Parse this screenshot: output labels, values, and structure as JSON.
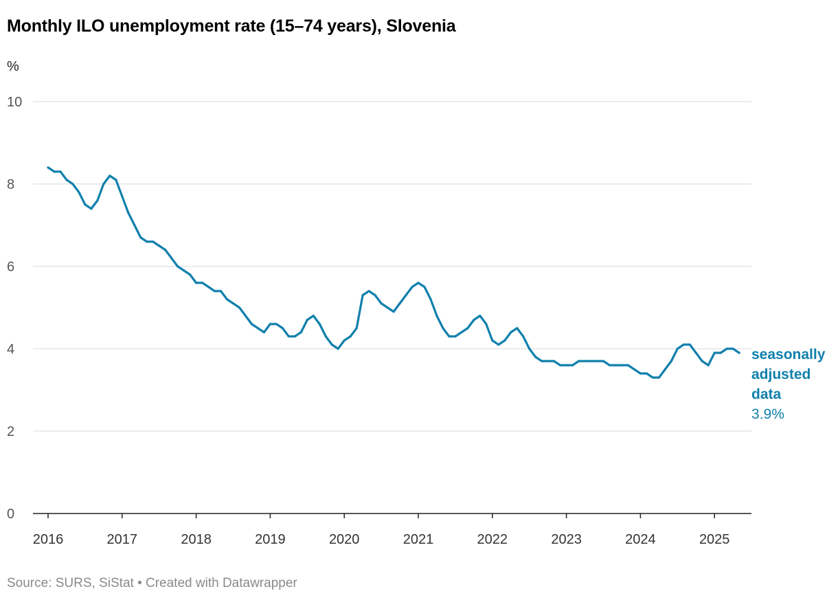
{
  "title": "Monthly ILO unemployment rate (15–74 years), Slovenia",
  "source": "Source: SURS, SiStat • Created with Datawrapper",
  "colors": {
    "line": "#1080ac",
    "grid": "#d9d9d9",
    "axis": "#222222"
  },
  "chart_data": {
    "type": "line",
    "title": "Monthly ILO unemployment rate (15–74 years), Slovenia",
    "ylabel": "%",
    "xlabel": "",
    "ylim": [
      0,
      10
    ],
    "yticks": [
      0,
      2,
      4,
      6,
      8,
      10
    ],
    "xlim": [
      "2016-01",
      "2025-05"
    ],
    "xticks": [
      "2016",
      "2017",
      "2018",
      "2019",
      "2020",
      "2021",
      "2022",
      "2023",
      "2024",
      "2025"
    ],
    "grid": true,
    "series": [
      {
        "name": "seasonally adjusted data",
        "label_lines": [
          "seasonally",
          "adjusted",
          "data"
        ],
        "last_value_label": "3.9%",
        "start": "2016-01",
        "frequency": "monthly",
        "values": [
          8.4,
          8.3,
          8.3,
          8.1,
          8.0,
          7.8,
          7.5,
          7.4,
          7.6,
          8.0,
          8.2,
          8.1,
          7.7,
          7.3,
          7.0,
          6.7,
          6.6,
          6.6,
          6.5,
          6.4,
          6.2,
          6.0,
          5.9,
          5.8,
          5.6,
          5.6,
          5.5,
          5.4,
          5.4,
          5.2,
          5.1,
          5.0,
          4.8,
          4.6,
          4.5,
          4.4,
          4.6,
          4.6,
          4.5,
          4.3,
          4.3,
          4.4,
          4.7,
          4.8,
          4.6,
          4.3,
          4.1,
          4.0,
          4.2,
          4.3,
          4.5,
          5.3,
          5.4,
          5.3,
          5.1,
          5.0,
          4.9,
          5.1,
          5.3,
          5.5,
          5.6,
          5.5,
          5.2,
          4.8,
          4.5,
          4.3,
          4.3,
          4.4,
          4.5,
          4.7,
          4.8,
          4.6,
          4.2,
          4.1,
          4.2,
          4.4,
          4.5,
          4.3,
          4.0,
          3.8,
          3.7,
          3.7,
          3.7,
          3.6,
          3.6,
          3.6,
          3.7,
          3.7,
          3.7,
          3.7,
          3.7,
          3.6,
          3.6,
          3.6,
          3.6,
          3.5,
          3.4,
          3.4,
          3.3,
          3.3,
          3.5,
          3.7,
          4.0,
          4.1,
          4.1,
          3.9,
          3.7,
          3.6,
          3.9,
          3.9,
          4.0,
          4.0,
          3.9
        ]
      }
    ]
  }
}
